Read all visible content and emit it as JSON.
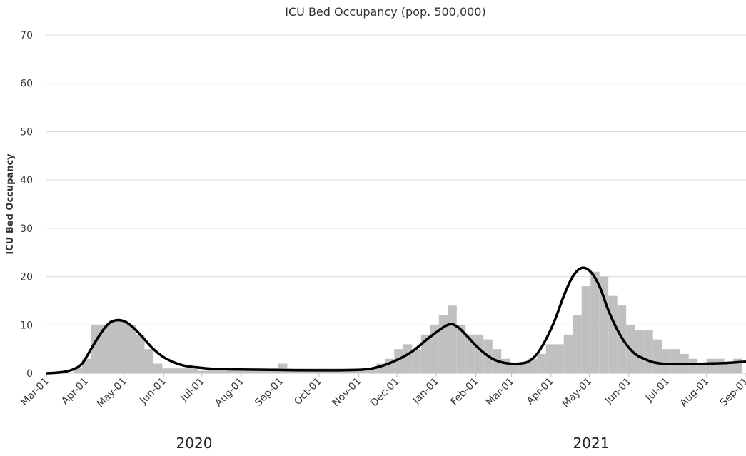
{
  "chart_data": {
    "type": "bar_line",
    "title": "ICU Bed Occupancy  (pop. 500,000)",
    "ylabel": "ICU Bed Occupancy",
    "year_labels": [
      "2020",
      "2021"
    ],
    "xlim": [
      0,
      549
    ],
    "xticks": [
      {
        "value": 0,
        "label": "Mar-01"
      },
      {
        "value": 31,
        "label": "Apr-01"
      },
      {
        "value": 61,
        "label": "May-01"
      },
      {
        "value": 92,
        "label": "Jun-01"
      },
      {
        "value": 122,
        "label": "Jul-01"
      },
      {
        "value": 153,
        "label": "Aug-01"
      },
      {
        "value": 184,
        "label": "Sep-01"
      },
      {
        "value": 214,
        "label": "Oct-01"
      },
      {
        "value": 245,
        "label": "Nov-01"
      },
      {
        "value": 275,
        "label": "Dec-01"
      },
      {
        "value": 306,
        "label": "Jan-01"
      },
      {
        "value": 337,
        "label": "Feb-01"
      },
      {
        "value": 365,
        "label": "Mar-01"
      },
      {
        "value": 396,
        "label": "Apr-01"
      },
      {
        "value": 426,
        "label": "May-01"
      },
      {
        "value": 457,
        "label": "Jun-01"
      },
      {
        "value": 487,
        "label": "Jul-01"
      },
      {
        "value": 518,
        "label": "Aug-01"
      },
      {
        "value": 549,
        "label": "Sep-01"
      }
    ],
    "ylim": [
      0,
      70
    ],
    "yticks": [
      0,
      10,
      20,
      30,
      40,
      50,
      60,
      70
    ],
    "grid": true,
    "bars": {
      "color": "#c0c0c0",
      "x": [
        21,
        28,
        35,
        42,
        49,
        56,
        63,
        70,
        77,
        84,
        91,
        98,
        105,
        112,
        119,
        126,
        133,
        140,
        147,
        154,
        161,
        168,
        175,
        182,
        189,
        196,
        203,
        210,
        217,
        224,
        231,
        238,
        245,
        252,
        259,
        266,
        273,
        280,
        287,
        294,
        301,
        308,
        315,
        322,
        329,
        336,
        343,
        350,
        357,
        364,
        371,
        378,
        385,
        392,
        399,
        406,
        413,
        420,
        427,
        434,
        441,
        448,
        455,
        462,
        469,
        476,
        483,
        490,
        497,
        504,
        511,
        518,
        525,
        532,
        539
      ],
      "values": [
        1,
        3,
        10,
        10,
        11,
        11,
        10,
        8,
        5,
        2,
        1,
        1,
        1,
        1,
        0.5,
        1,
        1,
        1,
        0.5,
        0.5,
        1,
        1,
        1,
        2,
        1,
        1,
        1,
        1,
        1,
        1,
        1,
        1,
        1,
        1,
        2,
        3,
        5,
        6,
        5,
        8,
        10,
        12,
        14,
        10,
        8,
        8,
        7,
        5,
        3,
        2,
        2,
        3,
        4,
        6,
        6,
        8,
        12,
        18,
        21,
        20,
        16,
        14,
        10,
        9,
        9,
        7,
        5,
        5,
        4,
        3,
        2,
        3,
        3,
        2,
        3
      ]
    },
    "line": {
      "color": "#000000",
      "x": [
        0,
        7,
        14,
        21,
        28,
        35,
        42,
        49,
        56,
        63,
        70,
        77,
        84,
        91,
        98,
        105,
        112,
        119,
        126,
        133,
        140,
        147,
        175,
        214,
        245,
        259,
        273,
        287,
        301,
        315,
        322,
        329,
        336,
        343,
        350,
        357,
        364,
        371,
        378,
        385,
        392,
        399,
        406,
        413,
        420,
        427,
        434,
        441,
        448,
        455,
        462,
        469,
        476,
        483,
        490,
        504,
        518,
        532,
        549
      ],
      "values": [
        0,
        0.1,
        0.3,
        0.8,
        2,
        5,
        8,
        10.3,
        11,
        10.5,
        9,
        7,
        5,
        3.5,
        2.5,
        1.8,
        1.4,
        1.2,
        1,
        0.9,
        0.85,
        0.8,
        0.7,
        0.6,
        0.7,
        1.2,
        2.5,
        4.5,
        7.5,
        10,
        9.7,
        8,
        6,
        4.3,
        3,
        2.3,
        2,
        2,
        2.4,
        4,
        7,
        11,
        16,
        20,
        21.8,
        21,
        18,
        13,
        9,
        6,
        4,
        3,
        2.3,
        2,
        1.9,
        1.9,
        2,
        2.1,
        2.4
      ]
    }
  }
}
